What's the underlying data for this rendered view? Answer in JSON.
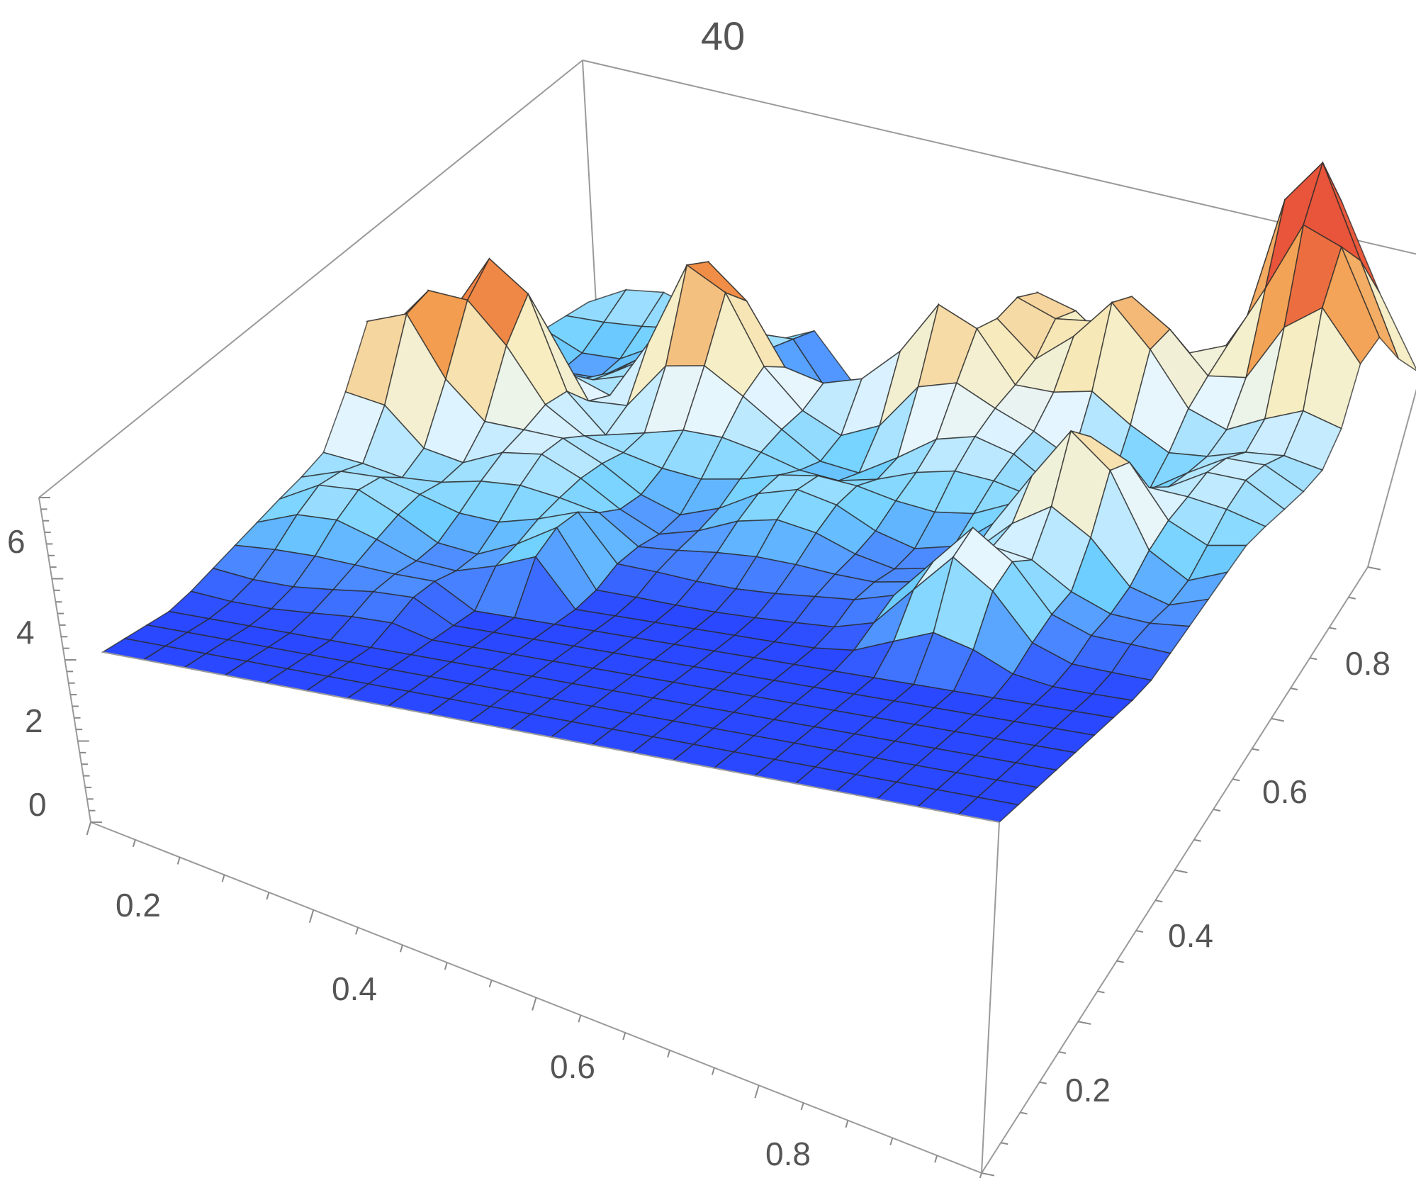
{
  "chart_data": {
    "type": "surface3d",
    "title": "40",
    "x_ticks": [
      "0.2",
      "0.4",
      "0.6",
      "0.8"
    ],
    "y_ticks": [
      "0.2",
      "0.4",
      "0.6",
      "0.8"
    ],
    "z_ticks": [
      "0",
      "2",
      "4",
      "6"
    ],
    "x_range": [
      0.05,
      0.95
    ],
    "y_range": [
      0.05,
      0.95
    ],
    "z_range": [
      0,
      6.6
    ],
    "grid": true,
    "colormap": [
      "#2a48ff",
      "#6fd0ff",
      "#e6f6ff",
      "#f7edc0",
      "#f29a4a",
      "#e8553a"
    ],
    "flat_region_color": "#2a48ff",
    "peaks": [
      {
        "x": 0.08,
        "y": 0.55,
        "z": 4.6
      },
      {
        "x": 0.15,
        "y": 0.62,
        "z": 4.5
      },
      {
        "x": 0.3,
        "y": 0.72,
        "z": 5.1
      },
      {
        "x": 0.45,
        "y": 0.82,
        "z": 4.2
      },
      {
        "x": 0.55,
        "y": 0.75,
        "z": 3.8
      },
      {
        "x": 0.6,
        "y": 0.85,
        "z": 3.6
      },
      {
        "x": 0.7,
        "y": 0.8,
        "z": 3.9
      },
      {
        "x": 0.85,
        "y": 0.92,
        "z": 6.5
      },
      {
        "x": 0.9,
        "y": 0.85,
        "z": 5.2
      },
      {
        "x": 0.8,
        "y": 0.55,
        "z": 3.4
      },
      {
        "x": 0.75,
        "y": 0.4,
        "z": 3.3
      }
    ]
  }
}
